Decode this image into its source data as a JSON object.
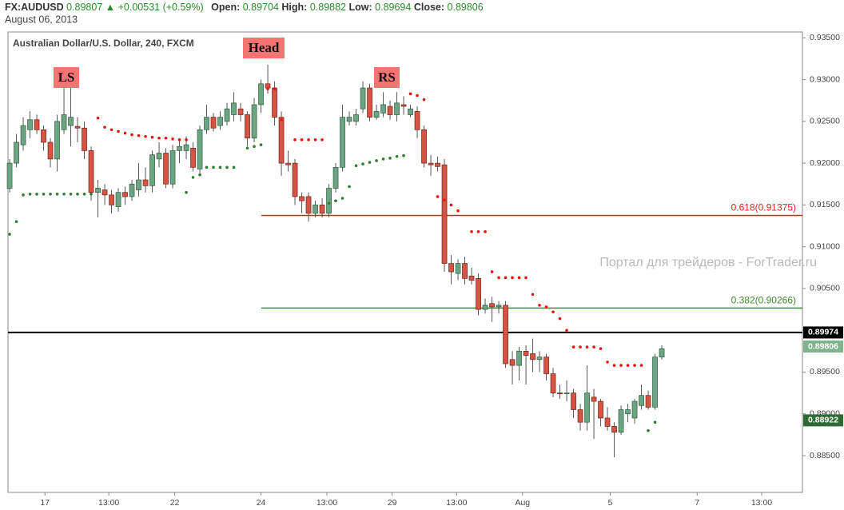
{
  "header": {
    "symbol": "FX:AUDUSD",
    "price": "0.89807",
    "change": "+0.00531 (+0.59%)",
    "fields": [
      {
        "label": "Open:",
        "value": "0.89704"
      },
      {
        "label": "High:",
        "value": "0.89882"
      },
      {
        "label": "Low:",
        "value": "0.89694"
      },
      {
        "label": "Close:",
        "value": "0.89806"
      }
    ],
    "date": "August 06, 2013"
  },
  "chart_data": {
    "type": "candlestick",
    "title": "Australian Dollar/U.S. Dollar, 240, FXCM",
    "watermark": "Портал для трейдеров - ForTrader.ru",
    "up_color": "#6ba583",
    "down_color": "#d75442",
    "x": [
      0,
      1,
      2,
      3,
      4,
      5,
      6,
      7,
      8,
      9,
      10,
      11,
      12,
      13,
      14,
      15,
      16,
      17,
      18,
      19,
      20,
      21,
      22,
      23,
      24,
      25,
      26,
      27,
      28,
      29,
      30,
      31,
      32,
      33,
      34,
      35,
      36,
      37,
      38,
      39,
      40,
      41,
      42,
      43,
      44,
      45,
      46,
      47,
      48,
      49,
      50,
      51,
      52,
      53,
      54,
      55,
      56,
      57,
      58,
      59,
      60,
      61,
      62,
      63,
      64,
      65,
      66,
      67,
      68,
      69,
      70,
      71,
      72,
      73,
      74,
      75,
      76,
      77,
      78,
      79,
      80,
      81,
      82,
      83,
      84,
      85,
      86,
      87,
      88,
      89,
      90,
      91,
      92,
      93,
      94,
      95,
      96
    ],
    "open": [
      0.917,
      0.92,
      0.9222,
      0.924,
      0.9252,
      0.924,
      0.9225,
      0.9205,
      0.924,
      0.9245,
      0.9244,
      0.9242,
      0.9215,
      0.9165,
      0.9168,
      0.9162,
      0.9148,
      0.9165,
      0.916,
      0.9168,
      0.918,
      0.9173,
      0.9205,
      0.9212,
      0.9175,
      0.9215,
      0.9215,
      0.9218,
      0.9193,
      0.924,
      0.9255,
      0.9245,
      0.925,
      0.9258,
      0.9265,
      0.9258,
      0.923,
      0.927,
      0.9295,
      0.929,
      0.9255,
      0.92,
      0.92,
      0.916,
      0.916,
      0.914,
      0.915,
      0.914,
      0.917,
      0.9195,
      0.925,
      0.925,
      0.9265,
      0.929,
      0.9255,
      0.926,
      0.9268,
      0.9258,
      0.927,
      0.9258,
      0.9262,
      0.924,
      0.92,
      0.92,
      0.9198,
      0.908,
      0.9068,
      0.908,
      0.9065,
      0.9062,
      0.9025,
      0.9032,
      0.9028,
      0.903,
      0.8965,
      0.8958,
      0.8975,
      0.8972,
      0.8965,
      0.8968,
      0.8948,
      0.8925,
      0.8924,
      0.8925,
      0.8905,
      0.889,
      0.892,
      0.8915,
      0.8895,
      0.8885,
      0.8878,
      0.89,
      0.8895,
      0.891,
      0.8922,
      0.8908,
      0.8968
    ],
    "high": [
      0.9205,
      0.9235,
      0.9255,
      0.9262,
      0.9258,
      0.9245,
      0.923,
      0.9258,
      0.9292,
      0.929,
      0.9255,
      0.925,
      0.922,
      0.918,
      0.9175,
      0.9168,
      0.917,
      0.9172,
      0.918,
      0.92,
      0.9195,
      0.9215,
      0.9225,
      0.9218,
      0.9222,
      0.9228,
      0.9232,
      0.9225,
      0.9245,
      0.927,
      0.926,
      0.9262,
      0.9272,
      0.9285,
      0.9272,
      0.9262,
      0.9278,
      0.93,
      0.9318,
      0.9298,
      0.9262,
      0.9215,
      0.9205,
      0.9165,
      0.9165,
      0.9155,
      0.9158,
      0.9175,
      0.92,
      0.927,
      0.9262,
      0.9265,
      0.9298,
      0.9295,
      0.927,
      0.9285,
      0.9275,
      0.9285,
      0.928,
      0.927,
      0.9268,
      0.9245,
      0.921,
      0.9208,
      0.9205,
      0.909,
      0.9085,
      0.9088,
      0.9075,
      0.9068,
      0.9038,
      0.904,
      0.9035,
      0.9035,
      0.8975,
      0.898,
      0.8982,
      0.899,
      0.8975,
      0.8972,
      0.8955,
      0.8935,
      0.894,
      0.893,
      0.8912,
      0.8958,
      0.893,
      0.8918,
      0.8908,
      0.889,
      0.891,
      0.8912,
      0.8918,
      0.8935,
      0.8928,
      0.8972,
      0.8982
    ],
    "low": [
      0.9165,
      0.9195,
      0.9215,
      0.923,
      0.9235,
      0.9215,
      0.9195,
      0.919,
      0.9235,
      0.922,
      0.9225,
      0.9205,
      0.9155,
      0.9135,
      0.915,
      0.914,
      0.9142,
      0.915,
      0.9155,
      0.916,
      0.9165,
      0.9165,
      0.9195,
      0.917,
      0.917,
      0.92,
      0.9205,
      0.919,
      0.9185,
      0.9235,
      0.9238,
      0.924,
      0.9245,
      0.925,
      0.925,
      0.922,
      0.9225,
      0.926,
      0.9283,
      0.9245,
      0.9185,
      0.919,
      0.915,
      0.914,
      0.913,
      0.9135,
      0.9135,
      0.9135,
      0.9165,
      0.919,
      0.9245,
      0.9245,
      0.926,
      0.925,
      0.9252,
      0.9255,
      0.9252,
      0.925,
      0.9258,
      0.9255,
      0.923,
      0.9195,
      0.9185,
      0.919,
      0.907,
      0.9055,
      0.906,
      0.9055,
      0.9055,
      0.9018,
      0.902,
      0.901,
      0.902,
      0.8955,
      0.8935,
      0.894,
      0.8935,
      0.895,
      0.895,
      0.894,
      0.892,
      0.8918,
      0.8915,
      0.8895,
      0.888,
      0.888,
      0.887,
      0.8885,
      0.888,
      0.8848,
      0.8875,
      0.889,
      0.8888,
      0.8905,
      0.8905,
      0.8905,
      0.8965
    ],
    "close": [
      0.92,
      0.9225,
      0.9245,
      0.9252,
      0.924,
      0.9225,
      0.9205,
      0.925,
      0.9258,
      0.9255,
      0.9242,
      0.9215,
      0.9165,
      0.917,
      0.9162,
      0.915,
      0.9165,
      0.916,
      0.9175,
      0.918,
      0.9173,
      0.921,
      0.9212,
      0.9175,
      0.9215,
      0.922,
      0.9222,
      0.9195,
      0.924,
      0.9255,
      0.9242,
      0.9255,
      0.9265,
      0.9272,
      0.9258,
      0.923,
      0.927,
      0.9295,
      0.929,
      0.9255,
      0.92,
      0.9198,
      0.916,
      0.9155,
      0.914,
      0.915,
      0.914,
      0.917,
      0.9195,
      0.9255,
      0.9255,
      0.9258,
      0.929,
      0.9255,
      0.9262,
      0.927,
      0.9258,
      0.9272,
      0.9268,
      0.9265,
      0.924,
      0.92,
      0.9198,
      0.9196,
      0.908,
      0.907,
      0.908,
      0.9062,
      0.906,
      0.9025,
      0.903,
      0.9028,
      0.903,
      0.896,
      0.8958,
      0.8975,
      0.897,
      0.8965,
      0.8968,
      0.8948,
      0.8925,
      0.8924,
      0.8925,
      0.8905,
      0.889,
      0.8925,
      0.8915,
      0.8895,
      0.8885,
      0.8878,
      0.8905,
      0.8905,
      0.8915,
      0.8922,
      0.8908,
      0.8968,
      0.8978
    ],
    "indicators": [
      {
        "color": "#f01010",
        "x": [
          13,
          14,
          15,
          16,
          17,
          18,
          19,
          20,
          21,
          22,
          23,
          24,
          25,
          26,
          38,
          39,
          40,
          42,
          43,
          44,
          45,
          46,
          59,
          60,
          61,
          63,
          64,
          65,
          66,
          68,
          69,
          70,
          71,
          72,
          73,
          74,
          75,
          76,
          77,
          78,
          79,
          80,
          81,
          82,
          83,
          84,
          85,
          86,
          87,
          88,
          89,
          90,
          91,
          92,
          93
        ],
        "values": [
          0.9254,
          0.9243,
          0.924,
          0.9238,
          0.9236,
          0.9234,
          0.9233,
          0.9232,
          0.9231,
          0.923,
          0.923,
          0.9229,
          0.9228,
          0.9228,
          0.9289,
          0.9289,
          0.9252,
          0.9228,
          0.9228,
          0.9228,
          0.9228,
          0.9228,
          0.9283,
          0.9281,
          0.9276,
          0.916,
          0.9156,
          0.915,
          0.9143,
          0.9118,
          0.9118,
          0.9118,
          0.907,
          0.9063,
          0.9063,
          0.9063,
          0.9063,
          0.9063,
          0.9043,
          0.903,
          0.9028,
          0.9022,
          0.9014,
          0.9,
          0.898,
          0.898,
          0.898,
          0.898,
          0.8978,
          0.8962,
          0.8958,
          0.8958,
          0.8958,
          0.8958,
          0.8958
        ]
      },
      {
        "color": "#2e7d32",
        "x": [
          0,
          1,
          2,
          3,
          4,
          5,
          6,
          7,
          8,
          9,
          10,
          11,
          12,
          26,
          27,
          28,
          29,
          30,
          31,
          32,
          33,
          35,
          36,
          37,
          47,
          48,
          49,
          50,
          51,
          52,
          53,
          54,
          55,
          56,
          57,
          58,
          94,
          95
        ],
        "values": [
          0.9115,
          0.913,
          0.9162,
          0.9163,
          0.9163,
          0.9163,
          0.9163,
          0.9163,
          0.9163,
          0.9163,
          0.9163,
          0.9163,
          0.9163,
          0.9165,
          0.9183,
          0.9186,
          0.9195,
          0.9195,
          0.9195,
          0.9195,
          0.9195,
          0.9218,
          0.922,
          0.9222,
          0.9152,
          0.9155,
          0.9158,
          0.9172,
          0.9197,
          0.9199,
          0.9201,
          0.9203,
          0.9205,
          0.9206,
          0.9208,
          0.9209,
          0.888,
          0.889
        ]
      }
    ],
    "hlines": [
      {
        "value": 0.91375,
        "label": "0.618(0.91375)",
        "color": "#e8201c"
      },
      {
        "value": 0.90266,
        "label": "0.382(0.90266)",
        "color": "#3c8c2a"
      },
      {
        "value": 0.89974,
        "color": "#000000"
      }
    ],
    "price_labels": [
      {
        "value": 0.89974,
        "label": "0.89974",
        "color": "#000000"
      },
      {
        "value": 0.89806,
        "label": "0.89806",
        "color": "#7fb38b"
      },
      {
        "value": 0.88922,
        "label": "0.88922",
        "color": "#2e6b34"
      }
    ],
    "annotations": [
      "LS",
      "Head",
      "RS"
    ],
    "ylim": [
      0.8806,
      0.9357
    ],
    "yticks": [
      {
        "value": 0.935,
        "label": "0.93500"
      },
      {
        "value": 0.93,
        "label": "0.93000"
      },
      {
        "value": 0.925,
        "label": "0.92500"
      },
      {
        "value": 0.92,
        "label": "0.92000"
      },
      {
        "value": 0.915,
        "label": "0.91500"
      },
      {
        "value": 0.91,
        "label": "0.91000"
      },
      {
        "value": 0.905,
        "label": "0.90500"
      },
      {
        "value": 0.9,
        "label": "0.90000"
      },
      {
        "value": 0.895,
        "label": "0.89500"
      },
      {
        "value": 0.89,
        "label": "0.89000"
      },
      {
        "value": 0.885,
        "label": "0.88500"
      }
    ],
    "xlim": [
      -0.24,
      116.7
    ],
    "xticks": [
      {
        "value": 5.2,
        "label": "17"
      },
      {
        "value": 14.6,
        "label": "13:00"
      },
      {
        "value": 24.3,
        "label": "22"
      },
      {
        "value": 37,
        "label": "24"
      },
      {
        "value": 46.7,
        "label": "13:00"
      },
      {
        "value": 56.3,
        "label": "29"
      },
      {
        "value": 65.8,
        "label": "13:00"
      },
      {
        "value": 75.5,
        "label": "Aug"
      },
      {
        "value": 88.4,
        "label": "5"
      },
      {
        "value": 101.2,
        "label": "7"
      },
      {
        "value": 110.7,
        "label": "13:00"
      }
    ],
    "grid": false
  }
}
